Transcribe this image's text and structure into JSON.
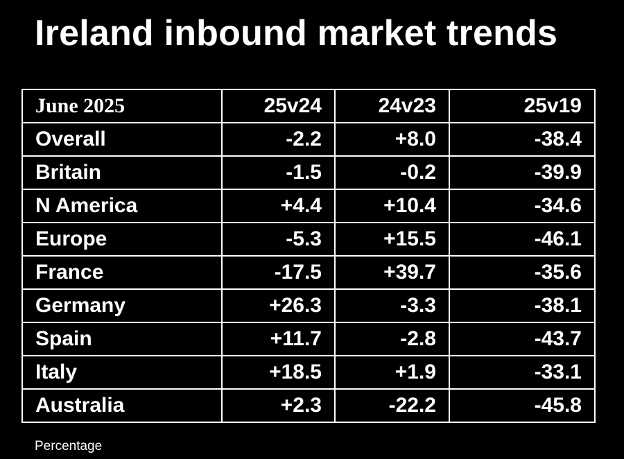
{
  "title": "Ireland inbound market trends",
  "footnote": "Percentage",
  "colors": {
    "background": "#000000",
    "text": "#ffffff",
    "grid": "#ffffff"
  },
  "chart_data": {
    "type": "table",
    "title": "Ireland inbound market trends",
    "period_label": "June 2025",
    "columns": [
      "25v24",
      "24v23",
      "25v19"
    ],
    "unit": "Percentage",
    "rows": [
      {
        "label": "Overall",
        "values": [
          "-2.2",
          "+8.0",
          "-38.4"
        ]
      },
      {
        "label": "Britain",
        "values": [
          "-1.5",
          "-0.2",
          "-39.9"
        ]
      },
      {
        "label": "N America",
        "values": [
          "+4.4",
          "+10.4",
          "-34.6"
        ]
      },
      {
        "label": "Europe",
        "values": [
          "-5.3",
          "+15.5",
          "-46.1"
        ]
      },
      {
        "label": "France",
        "values": [
          "-17.5",
          "+39.7",
          "-35.6"
        ]
      },
      {
        "label": "Germany",
        "values": [
          "+26.3",
          "-3.3",
          "-38.1"
        ]
      },
      {
        "label": "Spain",
        "values": [
          "+11.7",
          "-2.8",
          "-43.7"
        ]
      },
      {
        "label": "Italy",
        "values": [
          "+18.5",
          "+1.9",
          "-33.1"
        ]
      },
      {
        "label": "Australia",
        "values": [
          "+2.3",
          "-22.2",
          "-45.8"
        ]
      }
    ]
  }
}
